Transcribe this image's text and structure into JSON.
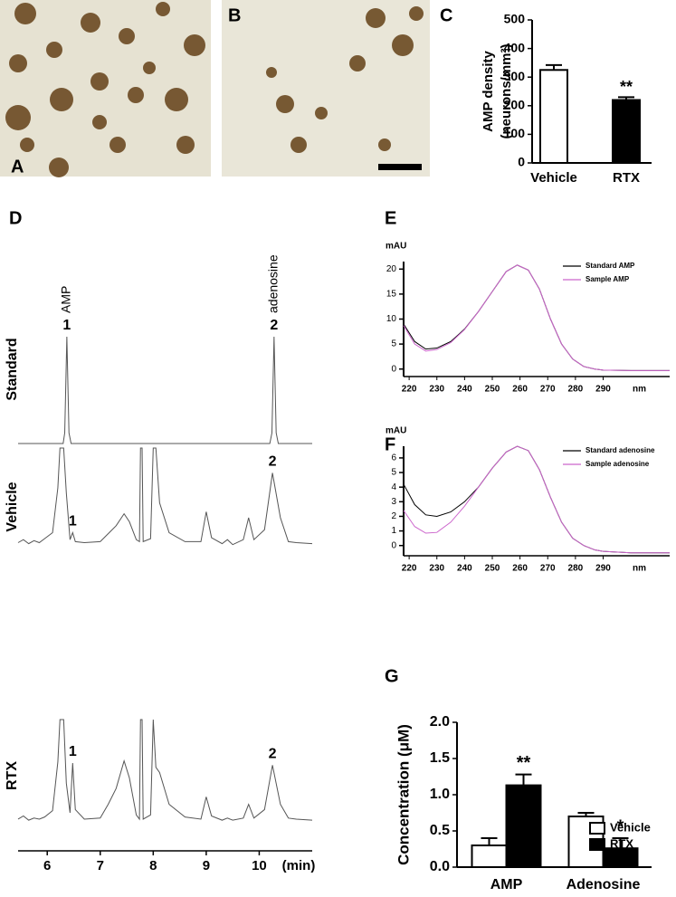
{
  "panel_labels": [
    "A",
    "B",
    "C",
    "D",
    "E",
    "F",
    "G"
  ],
  "chart_data": [
    {
      "type": "bar",
      "categories": [
        "Vehicle",
        "RTX"
      ],
      "values": [
        325,
        220
      ],
      "errors": [
        17,
        10
      ],
      "colors": [
        "#ffffff",
        "#000000"
      ],
      "value_annotations": [
        null,
        "**"
      ],
      "ylabel": [
        "AMP density",
        "(neurons/mm²)"
      ],
      "ylim": [
        0,
        500
      ],
      "yticks": [
        0,
        100,
        200,
        300,
        400,
        500
      ]
    },
    {
      "type": "chromatogram",
      "xlim": [
        5.45,
        11.0
      ],
      "xticks": [
        6,
        7,
        8,
        9,
        10
      ],
      "xlabel": "(min)",
      "color": "#555555",
      "traces": [
        {
          "name": "Standard",
          "x": [
            5.45,
            6.3,
            6.33,
            6.37,
            6.41,
            6.45,
            10.2,
            10.24,
            10.28,
            10.32,
            10.36,
            11.0
          ],
          "values": [
            0,
            0,
            10,
            100,
            10,
            0,
            0,
            10,
            100,
            10,
            0,
            0
          ],
          "peaks": [
            {
              "label": "1",
              "compound": "AMP",
              "x": 6.37
            },
            {
              "label": "2",
              "compound": "adenosine",
              "x": 10.28
            }
          ]
        },
        {
          "name": "Vehicle",
          "x": [
            5.45,
            5.55,
            5.65,
            5.75,
            5.85,
            5.95,
            6.1,
            6.2,
            6.24,
            6.31,
            6.36,
            6.43,
            6.48,
            6.53,
            6.7,
            7.0,
            7.15,
            7.3,
            7.45,
            7.55,
            7.68,
            7.74,
            7.76,
            7.79,
            7.81,
            7.95,
            8.0,
            8.05,
            8.12,
            8.3,
            8.6,
            8.9,
            9.0,
            9.1,
            9.3,
            9.4,
            9.5,
            9.7,
            9.8,
            9.9,
            10.1,
            10.25,
            10.4,
            10.55,
            10.7,
            11.0
          ],
          "values": [
            5,
            8,
            4,
            7,
            5,
            9,
            15,
            60,
            100,
            100,
            55,
            8,
            15,
            6,
            5,
            6,
            14,
            22,
            34,
            26,
            8,
            6,
            100,
            100,
            6,
            9,
            100,
            100,
            45,
            15,
            6,
            6,
            36,
            10,
            4,
            8,
            3,
            8,
            30,
            8,
            18,
            75,
            30,
            6,
            5,
            4
          ],
          "peaks": [
            {
              "label": "1",
              "x": 6.48
            },
            {
              "label": "2",
              "x": 10.25
            }
          ]
        },
        {
          "name": "RTX",
          "x": [
            5.45,
            5.55,
            5.65,
            5.75,
            5.85,
            5.95,
            6.1,
            6.2,
            6.24,
            6.31,
            6.36,
            6.43,
            6.48,
            6.53,
            6.7,
            7.0,
            7.15,
            7.3,
            7.45,
            7.55,
            7.68,
            7.74,
            7.76,
            7.79,
            7.81,
            7.95,
            8.0,
            8.05,
            8.12,
            8.3,
            8.6,
            8.9,
            9.0,
            9.1,
            9.3,
            9.4,
            9.5,
            9.7,
            9.8,
            9.9,
            10.1,
            10.25,
            10.4,
            10.55,
            10.7,
            11.0
          ],
          "values": [
            6,
            9,
            5,
            7,
            6,
            8,
            14,
            60,
            100,
            100,
            40,
            12,
            59,
            15,
            6,
            7,
            20,
            35,
            61,
            45,
            10,
            6,
            100,
            100,
            6,
            10,
            100,
            55,
            50,
            20,
            8,
            6,
            27,
            9,
            5,
            7,
            5,
            7,
            20,
            7,
            15,
            57,
            20,
            7,
            6,
            5
          ],
          "peaks": [
            {
              "label": "1",
              "x": 6.48
            },
            {
              "label": "2",
              "x": 10.25
            }
          ]
        }
      ]
    },
    {
      "type": "line",
      "ylabel": "mAU",
      "xlabel": "nm",
      "legend": "upper right",
      "xlim": [
        218,
        314
      ],
      "xticks": [
        220,
        230,
        240,
        250,
        260,
        270,
        280,
        290
      ],
      "ylim": [
        -1.5,
        21.5
      ],
      "yticks": [
        0,
        5,
        10,
        15,
        20
      ],
      "x": [
        218,
        222,
        226,
        230,
        235,
        240,
        245,
        250,
        255,
        259,
        263,
        267,
        271,
        275,
        279,
        283,
        287,
        290,
        300,
        314
      ],
      "series": [
        {
          "name": "Standard AMP",
          "color": "#000000",
          "values": [
            9,
            5.5,
            4,
            4.2,
            5.5,
            8,
            11.5,
            15.5,
            19.5,
            20.8,
            19.8,
            16,
            10,
            5,
            2,
            0.5,
            0,
            -0.2,
            -0.3,
            -0.3
          ]
        },
        {
          "name": "Sample AMP",
          "color": "#cc66cc",
          "values": [
            8.7,
            5,
            3.6,
            3.9,
            5.3,
            7.9,
            11.5,
            15.5,
            19.5,
            20.8,
            19.8,
            16,
            10,
            5,
            2,
            0.5,
            0,
            -0.2,
            -0.3,
            -0.3
          ]
        }
      ]
    },
    {
      "type": "line",
      "ylabel": "mAU",
      "xlabel": "nm",
      "legend": "upper right",
      "xlim": [
        218,
        314
      ],
      "xticks": [
        220,
        230,
        240,
        250,
        260,
        270,
        280,
        290
      ],
      "ylim": [
        -0.7,
        6.8
      ],
      "yticks": [
        0,
        1,
        2,
        3,
        4,
        5,
        6
      ],
      "x": [
        218,
        222,
        226,
        230,
        235,
        240,
        245,
        250,
        255,
        259,
        263,
        267,
        271,
        275,
        279,
        283,
        287,
        290,
        300,
        314
      ],
      "series": [
        {
          "name": "Standard adenosine",
          "color": "#000000",
          "values": [
            4.2,
            2.8,
            2.1,
            2,
            2.3,
            3,
            4,
            5.3,
            6.4,
            6.8,
            6.5,
            5.2,
            3.3,
            1.6,
            0.5,
            0,
            -0.3,
            -0.4,
            -0.5,
            -0.5
          ]
        },
        {
          "name": "Sample adenosine",
          "color": "#cc66cc",
          "values": [
            2.4,
            1.3,
            0.85,
            0.9,
            1.6,
            2.7,
            4,
            5.3,
            6.4,
            6.8,
            6.5,
            5.2,
            3.3,
            1.6,
            0.5,
            0,
            -0.3,
            -0.4,
            -0.5,
            -0.5
          ]
        }
      ]
    },
    {
      "type": "grouped_bar",
      "categories": [
        "AMP",
        "Adenosine"
      ],
      "ylabel": "Concentration (μM)",
      "legend": "upper right",
      "ylim": [
        0,
        2
      ],
      "yticks": [
        {
          "value": 0,
          "label": "0.0"
        },
        {
          "value": 0.5,
          "label": "0.5"
        },
        {
          "value": 1,
          "label": "1.0"
        },
        {
          "value": 1.5,
          "label": "1.5"
        },
        {
          "value": 2,
          "label": "2.0"
        }
      ],
      "series": [
        {
          "name": "Vehicle",
          "color": "#ffffff",
          "values": [
            0.3,
            0.7
          ],
          "errors": [
            0.1,
            0.05
          ],
          "annotations": [
            null,
            null
          ]
        },
        {
          "name": "RTX",
          "color": "#000000",
          "values": [
            1.13,
            0.26
          ],
          "errors": [
            0.15,
            0.14
          ],
          "annotations": [
            "**",
            "*"
          ]
        }
      ]
    }
  ]
}
